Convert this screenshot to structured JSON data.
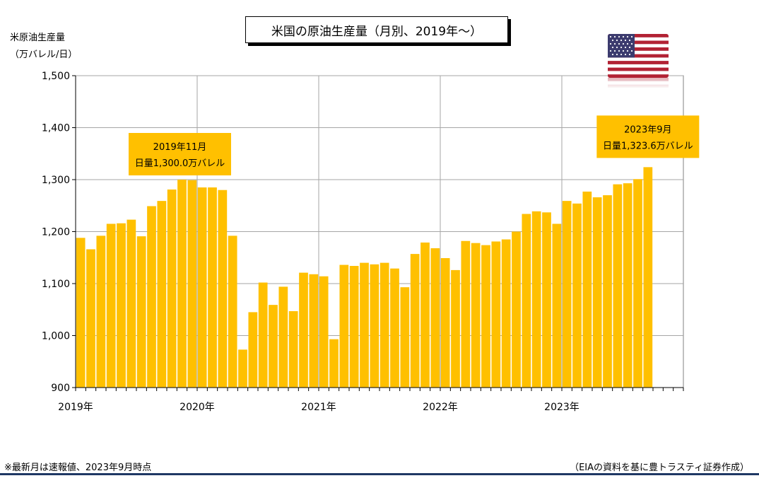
{
  "chart_data": {
    "type": "bar",
    "title": "米国の原油生産量（月別、2019年～）",
    "ylabel_line1": "米原油生産量",
    "ylabel_line2": "（万バレル/日）",
    "ylim": [
      900,
      1500
    ],
    "yticks": [
      "900",
      "1,000",
      "1,100",
      "1,200",
      "1,300",
      "1,400",
      "1,500"
    ],
    "x_year_labels": [
      "2019年",
      "2020年",
      "2021年",
      "2022年",
      "2023年"
    ],
    "categories": [
      "2019-01",
      "2019-02",
      "2019-03",
      "2019-04",
      "2019-05",
      "2019-06",
      "2019-07",
      "2019-08",
      "2019-09",
      "2019-10",
      "2019-11",
      "2019-12",
      "2020-01",
      "2020-02",
      "2020-03",
      "2020-04",
      "2020-05",
      "2020-06",
      "2020-07",
      "2020-08",
      "2020-09",
      "2020-10",
      "2020-11",
      "2020-12",
      "2021-01",
      "2021-02",
      "2021-03",
      "2021-04",
      "2021-05",
      "2021-06",
      "2021-07",
      "2021-08",
      "2021-09",
      "2021-10",
      "2021-11",
      "2021-12",
      "2022-01",
      "2022-02",
      "2022-03",
      "2022-04",
      "2022-05",
      "2022-06",
      "2022-07",
      "2022-08",
      "2022-09",
      "2022-10",
      "2022-11",
      "2022-12",
      "2023-01",
      "2023-02",
      "2023-03",
      "2023-04",
      "2023-05",
      "2023-06",
      "2023-07",
      "2023-08",
      "2023-09"
    ],
    "values": [
      1188,
      1166,
      1192,
      1215,
      1216,
      1223,
      1191,
      1249,
      1259,
      1281,
      1300,
      1299,
      1285,
      1285,
      1280,
      1192,
      973,
      1045,
      1102,
      1059,
      1094,
      1047,
      1121,
      1118,
      1114,
      993,
      1136,
      1134,
      1140,
      1137,
      1140,
      1129,
      1093,
      1157,
      1179,
      1168,
      1149,
      1126,
      1182,
      1178,
      1174,
      1181,
      1185,
      1200,
      1234,
      1239,
      1237,
      1215,
      1259,
      1254,
      1277,
      1266,
      1270,
      1291,
      1293,
      1301,
      1324
    ],
    "bar_color": "#ffc000",
    "grid": true,
    "annotations": [
      {
        "line1": "2019年11月",
        "line2": "日量1,300.0万バレル",
        "index": 10
      },
      {
        "line1": "2023年9月",
        "line2": "日量1,323.6万バレル",
        "index": 56
      }
    ]
  },
  "flag_icon": "us-flag-icon",
  "footnote_left": "※最新月は速報値、2023年9月時点",
  "footnote_right": "（EIAの資料を基に豊トラスティ証券作成）"
}
